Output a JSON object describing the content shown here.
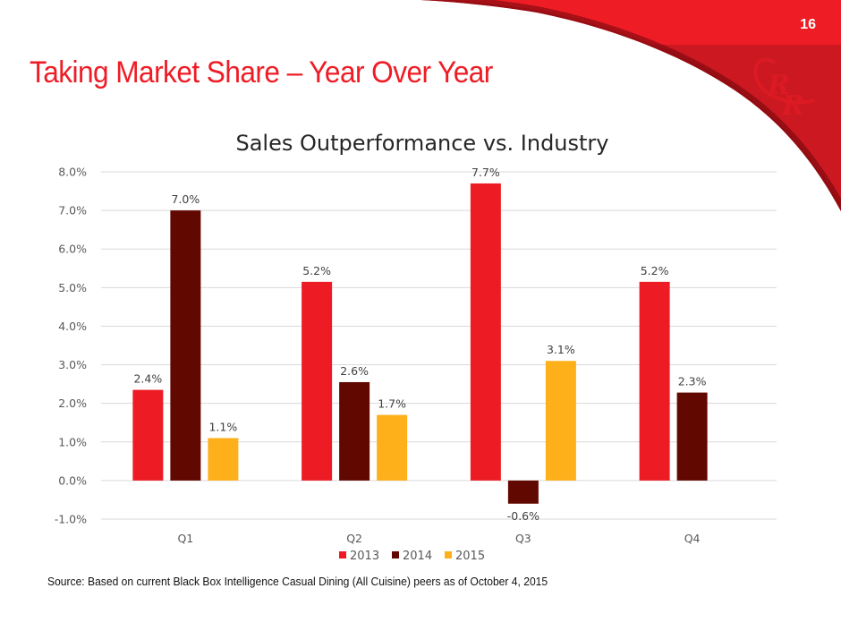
{
  "slide": {
    "page_number": "16",
    "title": "Taking Market Share – Year Over Year",
    "logo_icon": "rr-monogram-logo-icon",
    "source_note": "Source: Based on current Black Box Intelligence Casual Dining (All Cuisine) peers as of October 4, 2015",
    "colors": {
      "brand_red": "#ee1c25",
      "brand_dark_red": "#c8161e"
    }
  },
  "chart_data": {
    "type": "bar",
    "title": "Sales Outperformance vs. Industry",
    "xlabel": "",
    "ylabel": "",
    "categories": [
      "Q1",
      "Q2",
      "Q3",
      "Q4"
    ],
    "ylim": [
      -1.0,
      8.0
    ],
    "yticks": [
      -1.0,
      0.0,
      1.0,
      2.0,
      3.0,
      4.0,
      5.0,
      6.0,
      7.0,
      8.0
    ],
    "ytick_labels": [
      "-1.0%",
      "0.0%",
      "1.0%",
      "2.0%",
      "3.0%",
      "4.0%",
      "5.0%",
      "6.0%",
      "7.0%",
      "8.0%"
    ],
    "grid": true,
    "legend_position": "bottom",
    "series": [
      {
        "name": "2013",
        "color": "#ed1c24",
        "values": [
          2.35,
          5.15,
          7.7,
          5.15
        ],
        "labels": [
          "2.4%",
          "5.2%",
          "7.7%",
          "5.2%"
        ]
      },
      {
        "name": "2014",
        "color": "#610800",
        "values": [
          7.0,
          2.55,
          -0.6,
          2.28
        ],
        "labels": [
          "7.0%",
          "2.6%",
          "-0.6%",
          "2.3%"
        ]
      },
      {
        "name": "2015",
        "color": "#fdb01a",
        "values": [
          1.1,
          1.7,
          3.1,
          null
        ],
        "labels": [
          "1.1%",
          "1.7%",
          "3.1%",
          null
        ]
      }
    ]
  }
}
